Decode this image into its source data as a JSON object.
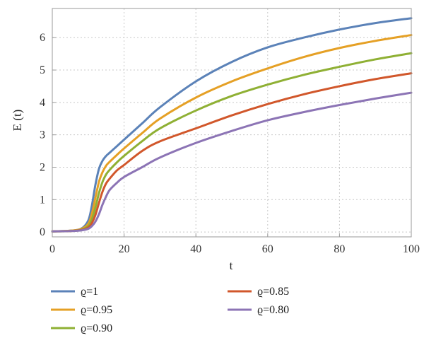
{
  "chart_data": {
    "type": "line",
    "xlabel": "t",
    "ylabel": "E (t)",
    "xlim": [
      0,
      100
    ],
    "ylim": [
      -0.15,
      6.9
    ],
    "x_ticks": [
      0,
      20,
      40,
      60,
      80,
      100
    ],
    "y_ticks": [
      0,
      1,
      2,
      3,
      4,
      5,
      6
    ],
    "grid": true,
    "grid_style": "dotted",
    "legend_position": "bottom",
    "x": [
      0,
      5,
      8,
      10,
      11,
      12,
      13,
      14,
      15,
      16,
      18,
      20,
      25,
      30,
      40,
      50,
      60,
      70,
      80,
      90,
      100
    ],
    "series": [
      {
        "name": "ϱ=1",
        "color": "#5b82b8",
        "values": [
          0.02,
          0.04,
          0.1,
          0.35,
          0.8,
          1.45,
          1.95,
          2.2,
          2.35,
          2.45,
          2.65,
          2.85,
          3.35,
          3.85,
          4.65,
          5.25,
          5.7,
          6.0,
          6.25,
          6.45,
          6.6
        ]
      },
      {
        "name": "ϱ=0.95",
        "color": "#e5a025",
        "values": [
          0.02,
          0.04,
          0.09,
          0.25,
          0.55,
          1.05,
          1.55,
          1.85,
          2.05,
          2.17,
          2.38,
          2.58,
          3.05,
          3.5,
          4.15,
          4.65,
          5.05,
          5.4,
          5.68,
          5.9,
          6.08
        ]
      },
      {
        "name": "ϱ=0.90",
        "color": "#8fb034",
        "values": [
          0.02,
          0.03,
          0.07,
          0.18,
          0.38,
          0.75,
          1.2,
          1.55,
          1.78,
          1.92,
          2.15,
          2.35,
          2.8,
          3.2,
          3.75,
          4.2,
          4.55,
          4.85,
          5.1,
          5.33,
          5.52
        ]
      },
      {
        "name": "ϱ=0.85",
        "color": "#d1572b",
        "values": [
          0.02,
          0.03,
          0.06,
          0.14,
          0.27,
          0.52,
          0.9,
          1.25,
          1.5,
          1.65,
          1.9,
          2.07,
          2.5,
          2.8,
          3.2,
          3.6,
          3.95,
          4.25,
          4.5,
          4.72,
          4.9
        ]
      },
      {
        "name": "ϱ=0.80",
        "color": "#8c74b5",
        "values": [
          0.02,
          0.03,
          0.05,
          0.1,
          0.18,
          0.32,
          0.55,
          0.85,
          1.1,
          1.3,
          1.52,
          1.7,
          2.0,
          2.3,
          2.75,
          3.12,
          3.45,
          3.7,
          3.92,
          4.12,
          4.3
        ]
      }
    ]
  }
}
